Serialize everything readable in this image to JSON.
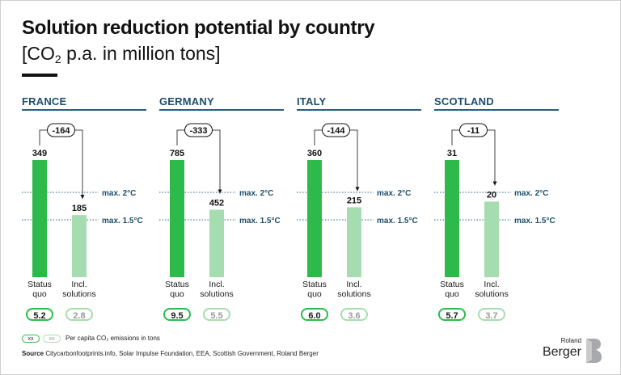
{
  "header": {
    "title": "Solution reduction potential by country",
    "subtitle_prefix": "[CO",
    "subtitle_sub": "2",
    "subtitle_suffix": " p.a. in million tons]"
  },
  "chart_data": [
    {
      "type": "bar",
      "country": "FRANCE",
      "categories": [
        "Status quo",
        "Incl. solutions"
      ],
      "values": [
        349,
        185
      ],
      "reduction_label": "-164",
      "reference_lines": [
        {
          "label": "max. 2°C"
        },
        {
          "label": "max. 1.5°C"
        }
      ],
      "per_capita": [
        "5.2",
        "2.8"
      ]
    },
    {
      "type": "bar",
      "country": "GERMANY",
      "categories": [
        "Status quo",
        "Incl. solutions"
      ],
      "values": [
        785,
        452
      ],
      "reduction_label": "-333",
      "reference_lines": [
        {
          "label": "max. 2°C"
        },
        {
          "label": "max. 1.5°C"
        }
      ],
      "per_capita": [
        "9.5",
        "5.5"
      ]
    },
    {
      "type": "bar",
      "country": "ITALY",
      "categories": [
        "Status quo",
        "Incl. solutions"
      ],
      "values": [
        360,
        215
      ],
      "reduction_label": "-144",
      "reference_lines": [
        {
          "label": "max. 2°C"
        },
        {
          "label": "max. 1.5°C"
        }
      ],
      "per_capita": [
        "6.0",
        "3.6"
      ]
    },
    {
      "type": "bar",
      "country": "SCOTLAND",
      "categories": [
        "Status quo",
        "Incl. solutions"
      ],
      "values": [
        31,
        20
      ],
      "reduction_label": "-11",
      "reference_lines": [
        {
          "label": "max. 2°C"
        },
        {
          "label": "max. 1.5°C"
        }
      ],
      "per_capita": [
        "5.7",
        "3.7"
      ]
    }
  ],
  "legend": {
    "pill_placeholder": "xx",
    "text": "Per capita CO₂ emissions in tons"
  },
  "source": {
    "label": "Source",
    "text": "Citycarbonfootprints.info, Solar Impulse Foundation, EEA, Scottish Government, Roland Berger"
  },
  "logo": {
    "line1": "Roland",
    "line2": "Berger"
  },
  "colors": {
    "status_bar": "#2dba4a",
    "incl_bar": "#a6ddb0",
    "ref_line": "#2a5f7d",
    "country_title": "#1d4e6b"
  }
}
